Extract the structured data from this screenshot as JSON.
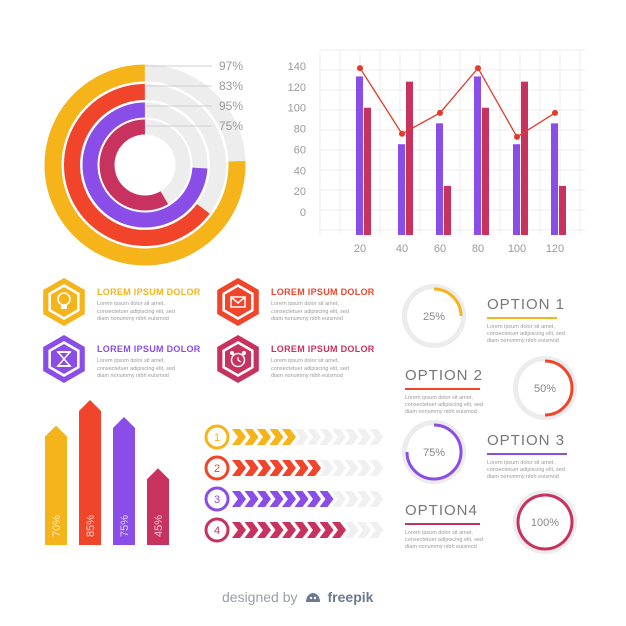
{
  "colors": {
    "yellow": "#F4B41A",
    "orange": "#F0452B",
    "purple": "#8A4DE8",
    "crimson": "#C8325F",
    "grey": "#EDEDED",
    "line": "#E23A2C"
  },
  "chart_data": [
    {
      "type": "radial-bar",
      "values": [
        97,
        83,
        95,
        75
      ],
      "labels": [
        "97%",
        "83%",
        "95%",
        "75%"
      ]
    },
    {
      "type": "bar",
      "categories": [
        "20",
        "40",
        "60",
        "80",
        "100",
        "120"
      ],
      "series": [
        {
          "values": [
            130,
            65,
            85,
            130,
            65,
            85
          ]
        },
        {
          "values": [
            100,
            125,
            25,
            100,
            125,
            25
          ]
        }
      ],
      "line": [
        138,
        75,
        95,
        138,
        72,
        95
      ],
      "ylim": [
        0,
        140
      ],
      "yticks": [
        "140",
        "120",
        "100",
        "80",
        "60",
        "40",
        "20",
        "0"
      ],
      "grid": true
    },
    {
      "type": "arrow-bar",
      "values": [
        70,
        85,
        75,
        45
      ],
      "labels": [
        "70%",
        "85%",
        "75%",
        "45%"
      ]
    },
    {
      "type": "progress-arrows",
      "steps": [
        "1",
        "2",
        "3",
        "4"
      ],
      "filled": [
        5,
        7,
        8,
        9
      ],
      "total": 12
    },
    {
      "type": "donut-gauges",
      "values": [
        25,
        50,
        75,
        100
      ],
      "labels": [
        "25%",
        "50%",
        "75%",
        "100%"
      ]
    }
  ],
  "items": [
    {
      "title": "LOREM IPSUM DOLOR",
      "body": "Lorem ipsum dolor sit amet, consectetuer adipiscing elit, sed diam nonummy nibh euismod",
      "icon": "lightbulb-icon"
    },
    {
      "title": "LOREM IPSUM DOLOR",
      "body": "Lorem ipsum dolor sit amet, consectetuer adipiscing elit, sed diam nonummy nibh euismod",
      "icon": "envelope-icon"
    },
    {
      "title": "LOREM IPSUM DOLOR",
      "body": "Lorem ipsum dolor sit amet, consectetuer adipiscing elit, sed diam nonummy nibh euismod",
      "icon": "hourglass-icon"
    },
    {
      "title": "LOREM IPSUM DOLOR",
      "body": "Lorem ipsum dolor sit amet, consectetuer adipiscing elit, sed diam nonummy nibh euismod",
      "icon": "alarm-clock-icon"
    }
  ],
  "options": [
    {
      "title": "OPTION 1",
      "body": "Lorem ipsum dolor sit amet, consectetuer adipiscing elit, sed diam nonummy nibh euismod"
    },
    {
      "title": "OPTION 2",
      "body": "Lorem ipsum dolor sit amet, consectetuer adipiscing elit, sed diam nonummy nibh euismod"
    },
    {
      "title": "OPTION 3",
      "body": "Lorem ipsum dolor sit amet, consectetuer adipiscing elit, sed diam nonummy nibh euismod"
    },
    {
      "title": "OPTION4",
      "body": "Lorem ipsum dolor sit amet, consectetuer adipiscing elit, sed diam nonummy nibh euismod"
    }
  ],
  "credit": {
    "prefix": "designed by",
    "brand": "freepik"
  }
}
